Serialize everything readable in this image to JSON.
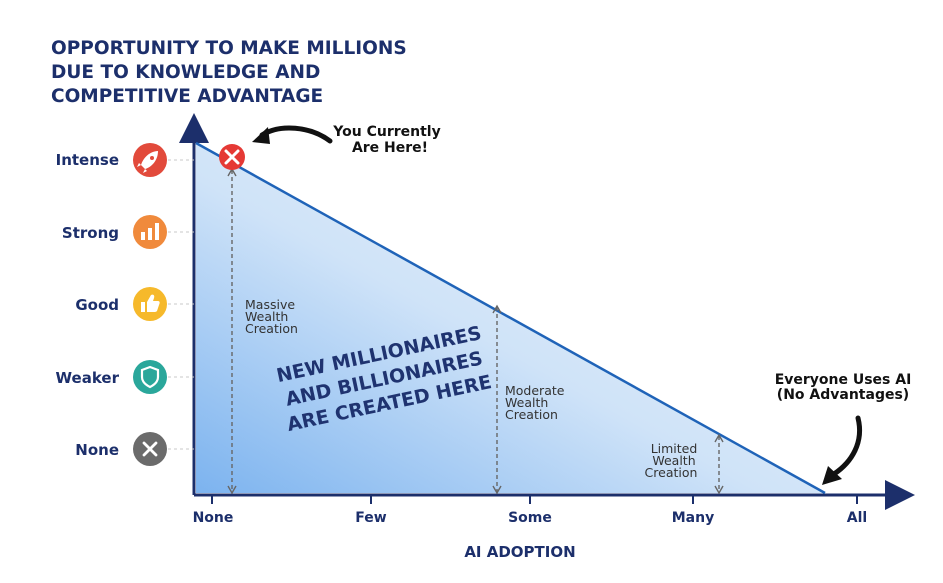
{
  "chart_data": {
    "type": "line",
    "title_lines": [
      "OPPORTUNITY TO MAKE MILLIONS",
      "DUE TO KNOWLEDGE AND",
      "COMPETITIVE ADVANTAGE"
    ],
    "xlabel": "AI ADOPTION",
    "x_categories": [
      "None",
      "Few",
      "Some",
      "Many",
      "All"
    ],
    "y_levels": [
      {
        "label": "Intense",
        "icon": "rocket-icon",
        "color": "#e24a3b"
      },
      {
        "label": "Strong",
        "icon": "bar-chart-icon",
        "color": "#f08a3c"
      },
      {
        "label": "Good",
        "icon": "thumbs-up-icon",
        "color": "#f6b92b"
      },
      {
        "label": "Weaker",
        "icon": "shield-icon",
        "color": "#2aa79b"
      },
      {
        "label": "None",
        "icon": "x-icon",
        "color": "#6b6b6b"
      }
    ],
    "series": [
      {
        "points": [
          {
            "x": "None",
            "y": "Intense"
          },
          {
            "x": "All",
            "y": "None"
          }
        ],
        "color": "#1f63b8"
      }
    ],
    "marker": {
      "x": "None",
      "y": "Intense",
      "icon": "x-circle-icon",
      "color": "#e53935"
    },
    "annotations": {
      "you_here": [
        "You Currently",
        "Are Here!"
      ],
      "everyone": [
        "Everyone Uses AI",
        "(No Advantages)"
      ],
      "massive": [
        "Massive",
        "Wealth",
        "Creation"
      ],
      "moderate": [
        "Moderate",
        "Wealth",
        "Creation"
      ],
      "limited": [
        "Limited",
        "Wealth",
        "Creation"
      ],
      "center": [
        "NEW MILLIONAIRES",
        "AND BILLIONAIRES",
        "ARE CREATED HERE"
      ]
    },
    "grid": false,
    "legend": "none"
  }
}
